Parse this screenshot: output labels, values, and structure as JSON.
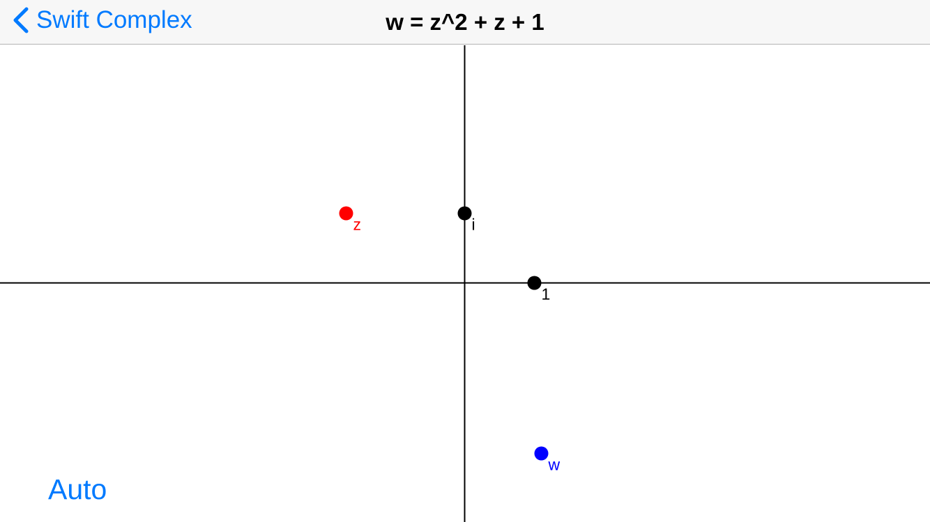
{
  "colors": {
    "accent": "#007aff",
    "axis": "#000000",
    "point_z": "#ff0000",
    "point_w": "#0000ff",
    "reference_point": "#000000"
  },
  "nav": {
    "back_label": "Swift Complex",
    "back_icon": "chevron-left-icon",
    "title": "w = z^2 + z + 1"
  },
  "plane": {
    "points": {
      "z": {
        "label": "z",
        "re": -1.7,
        "im": 1.0
      },
      "w": {
        "label": "w",
        "re": 1.1,
        "im": -2.45
      },
      "i": {
        "label": "i",
        "re": 0,
        "im": 1
      },
      "one": {
        "label": "1",
        "re": 1,
        "im": 0
      }
    }
  },
  "controls": {
    "auto_label": "Auto"
  }
}
